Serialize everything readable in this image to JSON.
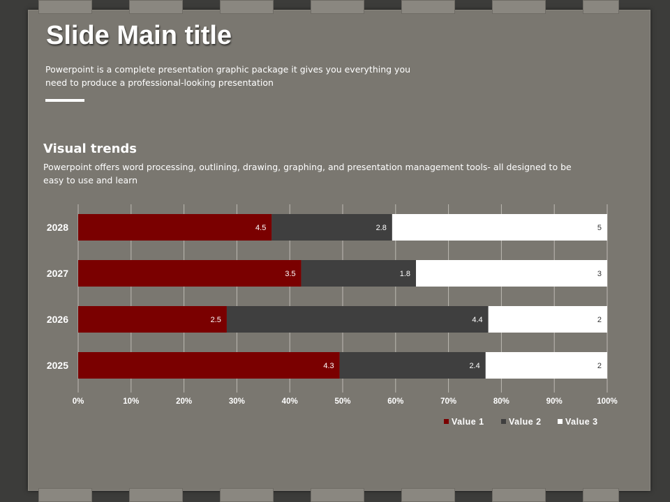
{
  "slide": {
    "title": "Slide Main title",
    "subtitle": "Powerpoint is a complete presentation graphic package it gives you everything you need to produce a professional-looking presentation",
    "section_title": "Visual trends",
    "section_desc": "Powerpoint offers word processing, outlining, drawing, graphing, and presentation management tools- all designed to be easy to use and learn"
  },
  "chart_data": {
    "type": "bar",
    "orientation": "horizontal",
    "stacked": "100%",
    "categories": [
      "2028",
      "2027",
      "2026",
      "2025"
    ],
    "series": [
      {
        "name": "Value 1",
        "values": [
          4.5,
          3.5,
          2.5,
          4.3
        ],
        "color": "#7a0000",
        "label_color": "#ffffff"
      },
      {
        "name": "Value 2",
        "values": [
          2.8,
          1.8,
          4.4,
          2.4
        ],
        "color": "#3f3f3f",
        "label_color": "#ffffff"
      },
      {
        "name": "Value 3",
        "values": [
          5,
          3,
          2,
          2
        ],
        "color": "#ffffff",
        "label_color": "#333333"
      }
    ],
    "x_ticks": [
      "0%",
      "10%",
      "20%",
      "30%",
      "40%",
      "50%",
      "60%",
      "70%",
      "80%",
      "90%",
      "100%"
    ],
    "xlim": [
      0,
      100
    ],
    "grid": true,
    "legend_position": "bottom-right"
  }
}
